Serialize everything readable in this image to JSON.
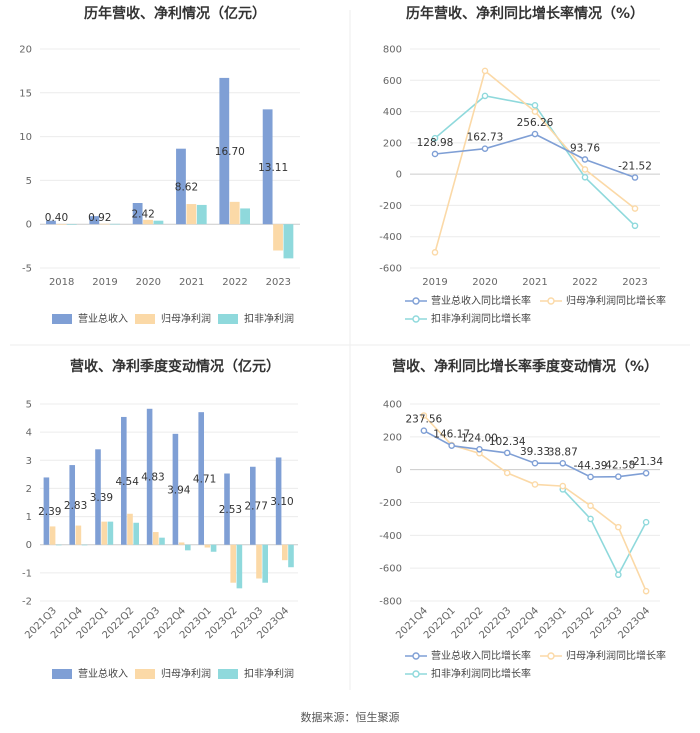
{
  "source": "数据来源：恒生聚源",
  "chart_data": [
    {
      "id": "c1",
      "type": "bar",
      "title": "历年营收、净利情况（亿元）",
      "categories": [
        "2018",
        "2019",
        "2020",
        "2021",
        "2022",
        "2023"
      ],
      "ylim": [
        -5,
        20
      ],
      "yticks": [
        -5,
        0,
        5,
        10,
        15,
        20
      ],
      "series": [
        {
          "name": "营业总收入",
          "color": "#7f9fd5",
          "values": [
            0.4,
            0.92,
            2.42,
            8.62,
            16.7,
            13.11
          ]
        },
        {
          "name": "归母净利润",
          "color": "#fbd9a7",
          "values": [
            0.02,
            0.05,
            0.5,
            2.3,
            2.55,
            -3.0
          ]
        },
        {
          "name": "扣非净利润",
          "color": "#8fd9dc",
          "values": [
            0.01,
            0.04,
            0.4,
            2.2,
            1.8,
            -3.9
          ]
        }
      ],
      "labels": [
        "0.40",
        "0.92",
        "2.42",
        "8.62",
        "16.70",
        "13.11"
      ]
    },
    {
      "id": "c2",
      "type": "line",
      "title": "历年营收、净利同比增长率情况（%）",
      "categories": [
        "2019",
        "2020",
        "2021",
        "2022",
        "2023"
      ],
      "ylim": [
        -600,
        800
      ],
      "yticks": [
        -600,
        -400,
        -200,
        0,
        200,
        400,
        600,
        800
      ],
      "series": [
        {
          "name": "营业总收入同比增长率",
          "color": "#7f9fd5",
          "values": [
            128.98,
            162.73,
            256.26,
            93.76,
            -21.52
          ]
        },
        {
          "name": "归母净利润同比增长率",
          "color": "#fbd9a7",
          "values": [
            -500,
            660,
            400,
            30,
            -220
          ]
        },
        {
          "name": "扣非净利润同比增长率",
          "color": "#8fd9dc",
          "values": [
            230,
            500,
            440,
            -20,
            -330
          ]
        }
      ],
      "labels": [
        "128.98",
        "162.73",
        "256.26",
        "93.76",
        "-21.52"
      ]
    },
    {
      "id": "c3",
      "type": "bar",
      "title": "营收、净利季度变动情况（亿元）",
      "categories": [
        "2021Q3",
        "2021Q4",
        "2022Q1",
        "2022Q2",
        "2022Q3",
        "2022Q4",
        "2023Q1",
        "2023Q2",
        "2023Q3",
        "2023Q4"
      ],
      "ylim": [
        -2,
        5
      ],
      "yticks": [
        -2,
        -1,
        0,
        1,
        2,
        3,
        4,
        5
      ],
      "series": [
        {
          "name": "营业总收入",
          "color": "#7f9fd5",
          "values": [
            2.39,
            2.83,
            3.39,
            4.54,
            4.83,
            3.94,
            4.71,
            2.53,
            2.77,
            3.1
          ]
        },
        {
          "name": "归母净利润",
          "color": "#fbd9a7",
          "values": [
            0.65,
            0.68,
            0.82,
            1.1,
            0.45,
            0.08,
            -0.1,
            -1.35,
            -1.2,
            -0.55
          ]
        },
        {
          "name": "扣非净利润",
          "color": "#8fd9dc",
          "values": [
            0.0,
            0.0,
            0.82,
            0.78,
            0.25,
            -0.2,
            -0.25,
            -1.55,
            -1.35,
            -0.8
          ]
        }
      ],
      "labels": [
        "2.39",
        "2.83",
        "3.39",
        "4.54",
        "4.83",
        "3.94",
        "4.71",
        "2.53",
        "2.77",
        "3.10"
      ]
    },
    {
      "id": "c4",
      "type": "line",
      "title": "营收、净利同比增长率季度变动情况（%）",
      "categories": [
        "2021Q4",
        "2022Q1",
        "2022Q2",
        "2022Q3",
        "2022Q4",
        "2023Q1",
        "2023Q2",
        "2023Q3",
        "2023Q4"
      ],
      "ylim": [
        -800,
        400
      ],
      "yticks": [
        -800,
        -600,
        -400,
        -200,
        0,
        200,
        400
      ],
      "series": [
        {
          "name": "营业总收入同比增长率",
          "color": "#7f9fd5",
          "values": [
            237.56,
            146.17,
            124.0,
            102.34,
            39.33,
            38.87,
            -44.39,
            -42.58,
            -21.34
          ]
        },
        {
          "name": "归母净利润同比增长率",
          "color": "#fbd9a7",
          "values": [
            330,
            150,
            100,
            -20,
            -90,
            -100,
            -220,
            -350,
            -740
          ]
        },
        {
          "name": "扣非净利润同比增长率",
          "color": "#8fd9dc",
          "values": [
            null,
            null,
            null,
            null,
            null,
            -120,
            -300,
            -640,
            -320
          ]
        }
      ],
      "labels": [
        "237.56",
        "146.17",
        "124.00",
        "102.34",
        "39.33",
        "38.87",
        "-44.39",
        "-42.58",
        "-21.34"
      ]
    }
  ]
}
